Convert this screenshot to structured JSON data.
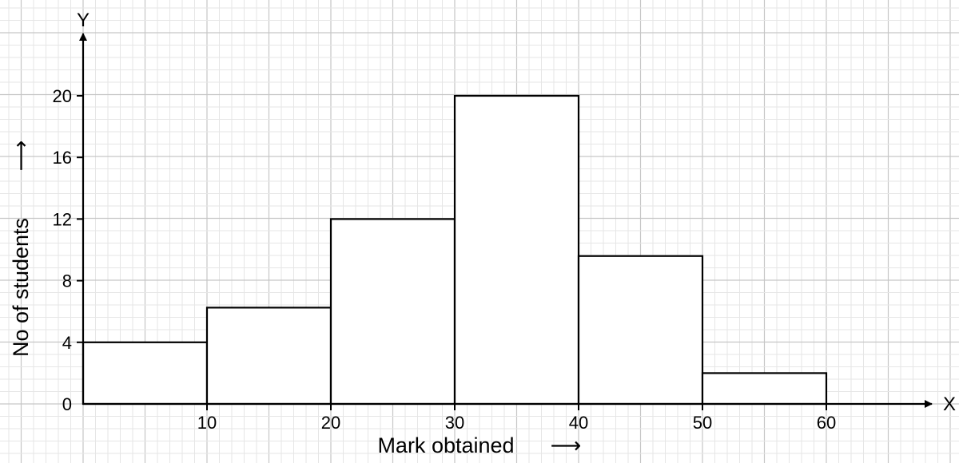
{
  "chart_data": {
    "type": "bar",
    "subtype": "histogram",
    "bins": [
      {
        "from": 0,
        "to": 10,
        "value": 4
      },
      {
        "from": 10,
        "to": 20,
        "value": 6.25
      },
      {
        "from": 20,
        "to": 30,
        "value": 12
      },
      {
        "from": 30,
        "to": 40,
        "value": 20
      },
      {
        "from": 40,
        "to": 50,
        "value": 9.6
      },
      {
        "from": 50,
        "to": 60,
        "value": 2
      }
    ],
    "x_ticks": [
      10,
      20,
      30,
      40,
      50,
      60
    ],
    "y_ticks": [
      0,
      4,
      8,
      12,
      16,
      20
    ],
    "x_axis_letter": "X",
    "y_axis_letter": "Y",
    "xlabel": "Mark obtained",
    "ylabel": "No of students",
    "arrow_glyph": "⟶",
    "xlim": [
      0,
      68
    ],
    "ylim": [
      0,
      24
    ],
    "grid": true,
    "colors": {
      "grid_minor": "#e6e6e6",
      "grid_major": "#c6c6c6",
      "bars_stroke": "#000000",
      "bars_fill": "#ffffff"
    }
  }
}
